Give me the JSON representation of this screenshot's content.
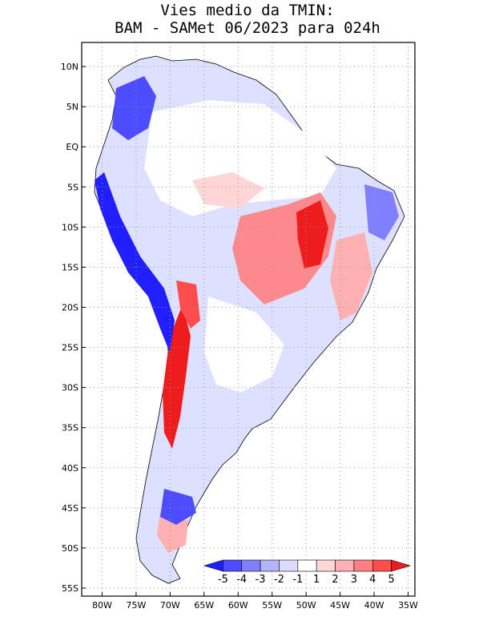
{
  "title": {
    "line1": "Vies medio da TMIN:",
    "line2": "BAM - SAMet 06/2023  para 024h"
  },
  "map": {
    "lat_labels": [
      "10N",
      "5N",
      "EQ",
      "5S",
      "10S",
      "15S",
      "20S",
      "25S",
      "30S",
      "35S",
      "40S",
      "45S",
      "50S",
      "55S"
    ],
    "lon_labels": [
      "80W",
      "75W",
      "70W",
      "65W",
      "60W",
      "55W",
      "50W",
      "45W",
      "40W",
      "35W"
    ],
    "lon_range": [
      -83,
      -34
    ],
    "lat_range": [
      -56,
      13
    ],
    "grid": "dotted"
  },
  "colorbar": {
    "colors": [
      "#1f1fff",
      "#4d4dff",
      "#8080ff",
      "#b3b3ff",
      "#dcdcff",
      "#ffffff",
      "#ffd6d6",
      "#ffb0b0",
      "#ff8080",
      "#ff4d4d",
      "#ee1c1c"
    ],
    "labels": [
      "-5",
      "-4",
      "-3",
      "-2",
      "-1",
      "1",
      "2",
      "3",
      "4",
      "5"
    ]
  }
}
